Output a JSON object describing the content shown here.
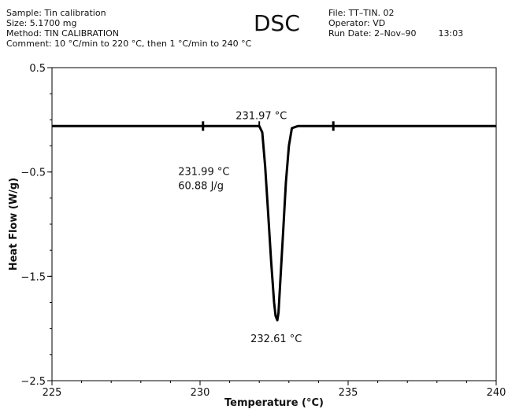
{
  "header": {
    "sample": "Sample: Tin calibration",
    "size": "Size: 5.1700 mg",
    "method": "Method: TIN CALIBRATION",
    "comment": "Comment: 10 °C/min to 220 °C, then 1 °C/min to 240 °C",
    "title": "DSC",
    "file": "File: TT–TIN. 02",
    "operator": "Operator: VD",
    "run_date": "Run Date: 2–Nov–90",
    "run_time": "13:03"
  },
  "chart_data": {
    "type": "line",
    "title": "DSC",
    "xlabel": "Temperature (°C)",
    "ylabel": "Heat Flow (W/g)",
    "xlim": [
      225,
      240
    ],
    "ylim": [
      -2.5,
      0.5
    ],
    "x_ticks": [
      225,
      230,
      235,
      240
    ],
    "x_tick_labels": [
      "225",
      "230",
      "235",
      "240"
    ],
    "y_ticks": [
      0.5,
      -0.5,
      -1.5,
      -2.5
    ],
    "y_tick_labels": [
      "0.5",
      "−0.5",
      "−1.5",
      "−2.5"
    ],
    "series": [
      {
        "x": [
          225.0,
          230.0,
          231.5,
          232.0,
          232.1,
          232.2,
          232.3,
          232.4,
          232.5,
          232.55,
          232.61,
          232.65,
          232.7,
          232.8,
          232.9,
          233.0,
          233.1,
          233.3,
          235.0,
          240.0
        ],
        "y": [
          -0.06,
          -0.06,
          -0.06,
          -0.06,
          -0.12,
          -0.45,
          -0.9,
          -1.35,
          -1.75,
          -1.88,
          -1.92,
          -1.85,
          -1.6,
          -1.1,
          -0.6,
          -0.25,
          -0.08,
          -0.06,
          -0.06,
          -0.06
        ]
      }
    ],
    "markers_x": [
      230.1,
      234.5
    ],
    "annotations": [
      {
        "text": "231.97 °C",
        "x": 232.0,
        "y": -0.06,
        "kind": "onset"
      },
      {
        "text": "231.99 °C",
        "x": 229.9,
        "y": -0.5,
        "kind": "area"
      },
      {
        "text": "60.88 J/g",
        "x": 229.9,
        "y": -0.5,
        "kind": "area"
      },
      {
        "text": "232.61 °C",
        "x": 232.61,
        "y": -1.92,
        "kind": "peak"
      }
    ],
    "grid": false
  }
}
